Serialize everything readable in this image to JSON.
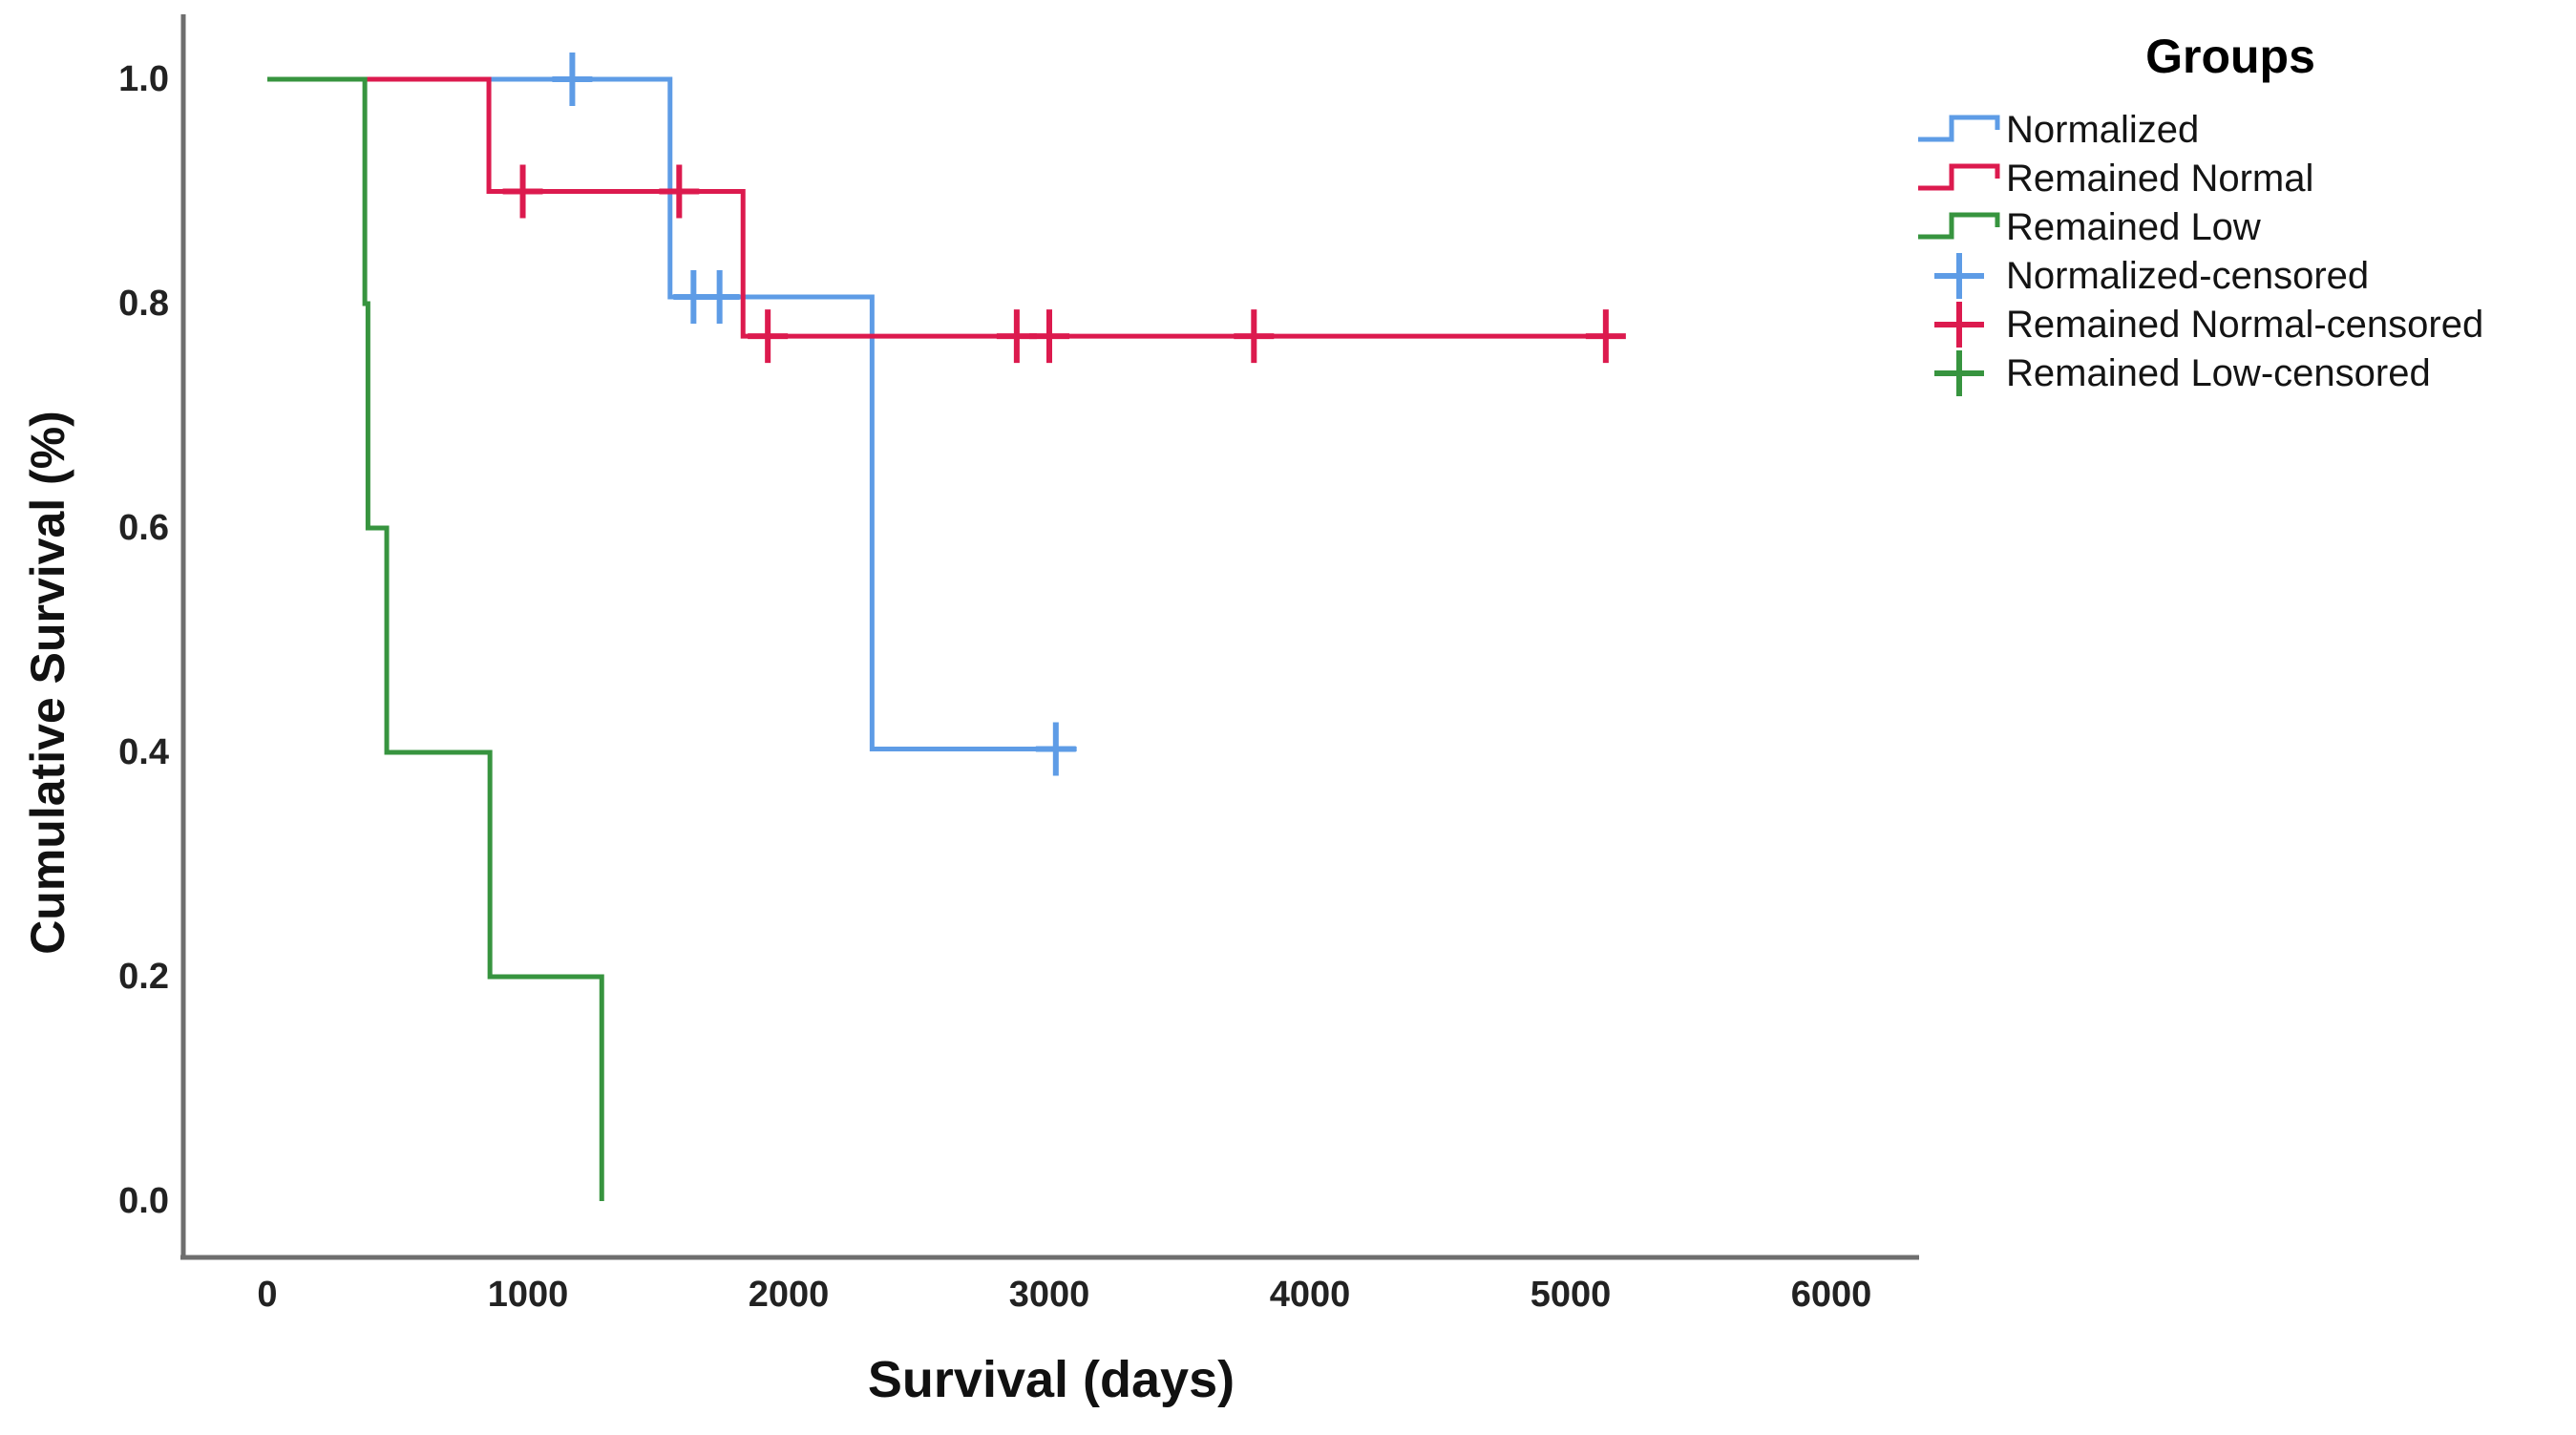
{
  "chart_data": {
    "type": "line",
    "subtype": "kaplan-meier-step",
    "title": "",
    "xlabel": "Survival (days)",
    "ylabel": "Cumulative Survival (%)",
    "xlim": [
      0,
      6000
    ],
    "ylim": [
      0.0,
      1.0
    ],
    "grid": "off",
    "legend_position": "top-right",
    "x_ticks": [
      0,
      1000,
      2000,
      3000,
      4000,
      5000,
      6000
    ],
    "x_tick_labels": [
      "0",
      "1000",
      "2000",
      "3000",
      "4000",
      "5000",
      "6000"
    ],
    "y_ticks": [
      1.0,
      0.8,
      0.6,
      0.4,
      0.2,
      0.0
    ],
    "y_tick_labels": [
      "1.0",
      "0.8",
      "0.6",
      "0.4",
      "0.2",
      "0.0"
    ],
    "series": [
      {
        "name": "Normalized",
        "color": "#5E9CE6",
        "steps": [
          [
            0,
            1.0
          ],
          [
            1545,
            0.806
          ],
          [
            2320,
            0.403
          ]
        ],
        "end_time": 3105,
        "censored": [
          [
            1170,
            1.0
          ],
          [
            1635,
            0.806
          ],
          [
            1735,
            0.806
          ],
          [
            3025,
            0.403
          ]
        ]
      },
      {
        "name": "Remained Normal",
        "color": "#DC1A4E",
        "steps": [
          [
            0,
            1.0
          ],
          [
            850,
            0.9
          ],
          [
            1825,
            0.771
          ]
        ],
        "end_time": 5210,
        "censored": [
          [
            980,
            0.9
          ],
          [
            1580,
            0.9
          ],
          [
            1920,
            0.771
          ],
          [
            2875,
            0.771
          ],
          [
            3000,
            0.771
          ],
          [
            3785,
            0.771
          ],
          [
            5135,
            0.771
          ]
        ]
      },
      {
        "name": "Remained Low",
        "color": "#37943F",
        "steps": [
          [
            0,
            1.0
          ],
          [
            374,
            0.8
          ],
          [
            386,
            0.6
          ],
          [
            458,
            0.4
          ],
          [
            854,
            0.2
          ],
          [
            1283,
            0.0
          ]
        ],
        "end_time": 1283,
        "censored": []
      }
    ]
  },
  "axes": {
    "x": {
      "title": "Survival (days)"
    },
    "y": {
      "title": "Cumulative Survival (%)"
    }
  },
  "legend": {
    "title": "Groups",
    "items": [
      {
        "label": "Normalized",
        "symbol": "step",
        "color": "#5E9CE6"
      },
      {
        "label": "Remained Normal",
        "symbol": "step",
        "color": "#DC1A4E"
      },
      {
        "label": "Remained Low",
        "symbol": "step",
        "color": "#37943F"
      },
      {
        "label": "Normalized-censored",
        "symbol": "plus",
        "color": "#5E9CE6"
      },
      {
        "label": "Remained Normal-censored",
        "symbol": "plus",
        "color": "#DC1A4E"
      },
      {
        "label": "Remained Low-censored",
        "symbol": "plus",
        "color": "#37943F"
      }
    ]
  },
  "colors": {
    "axis": "#6E6E6E",
    "text": "#111111",
    "background": "#FFFFFF"
  }
}
